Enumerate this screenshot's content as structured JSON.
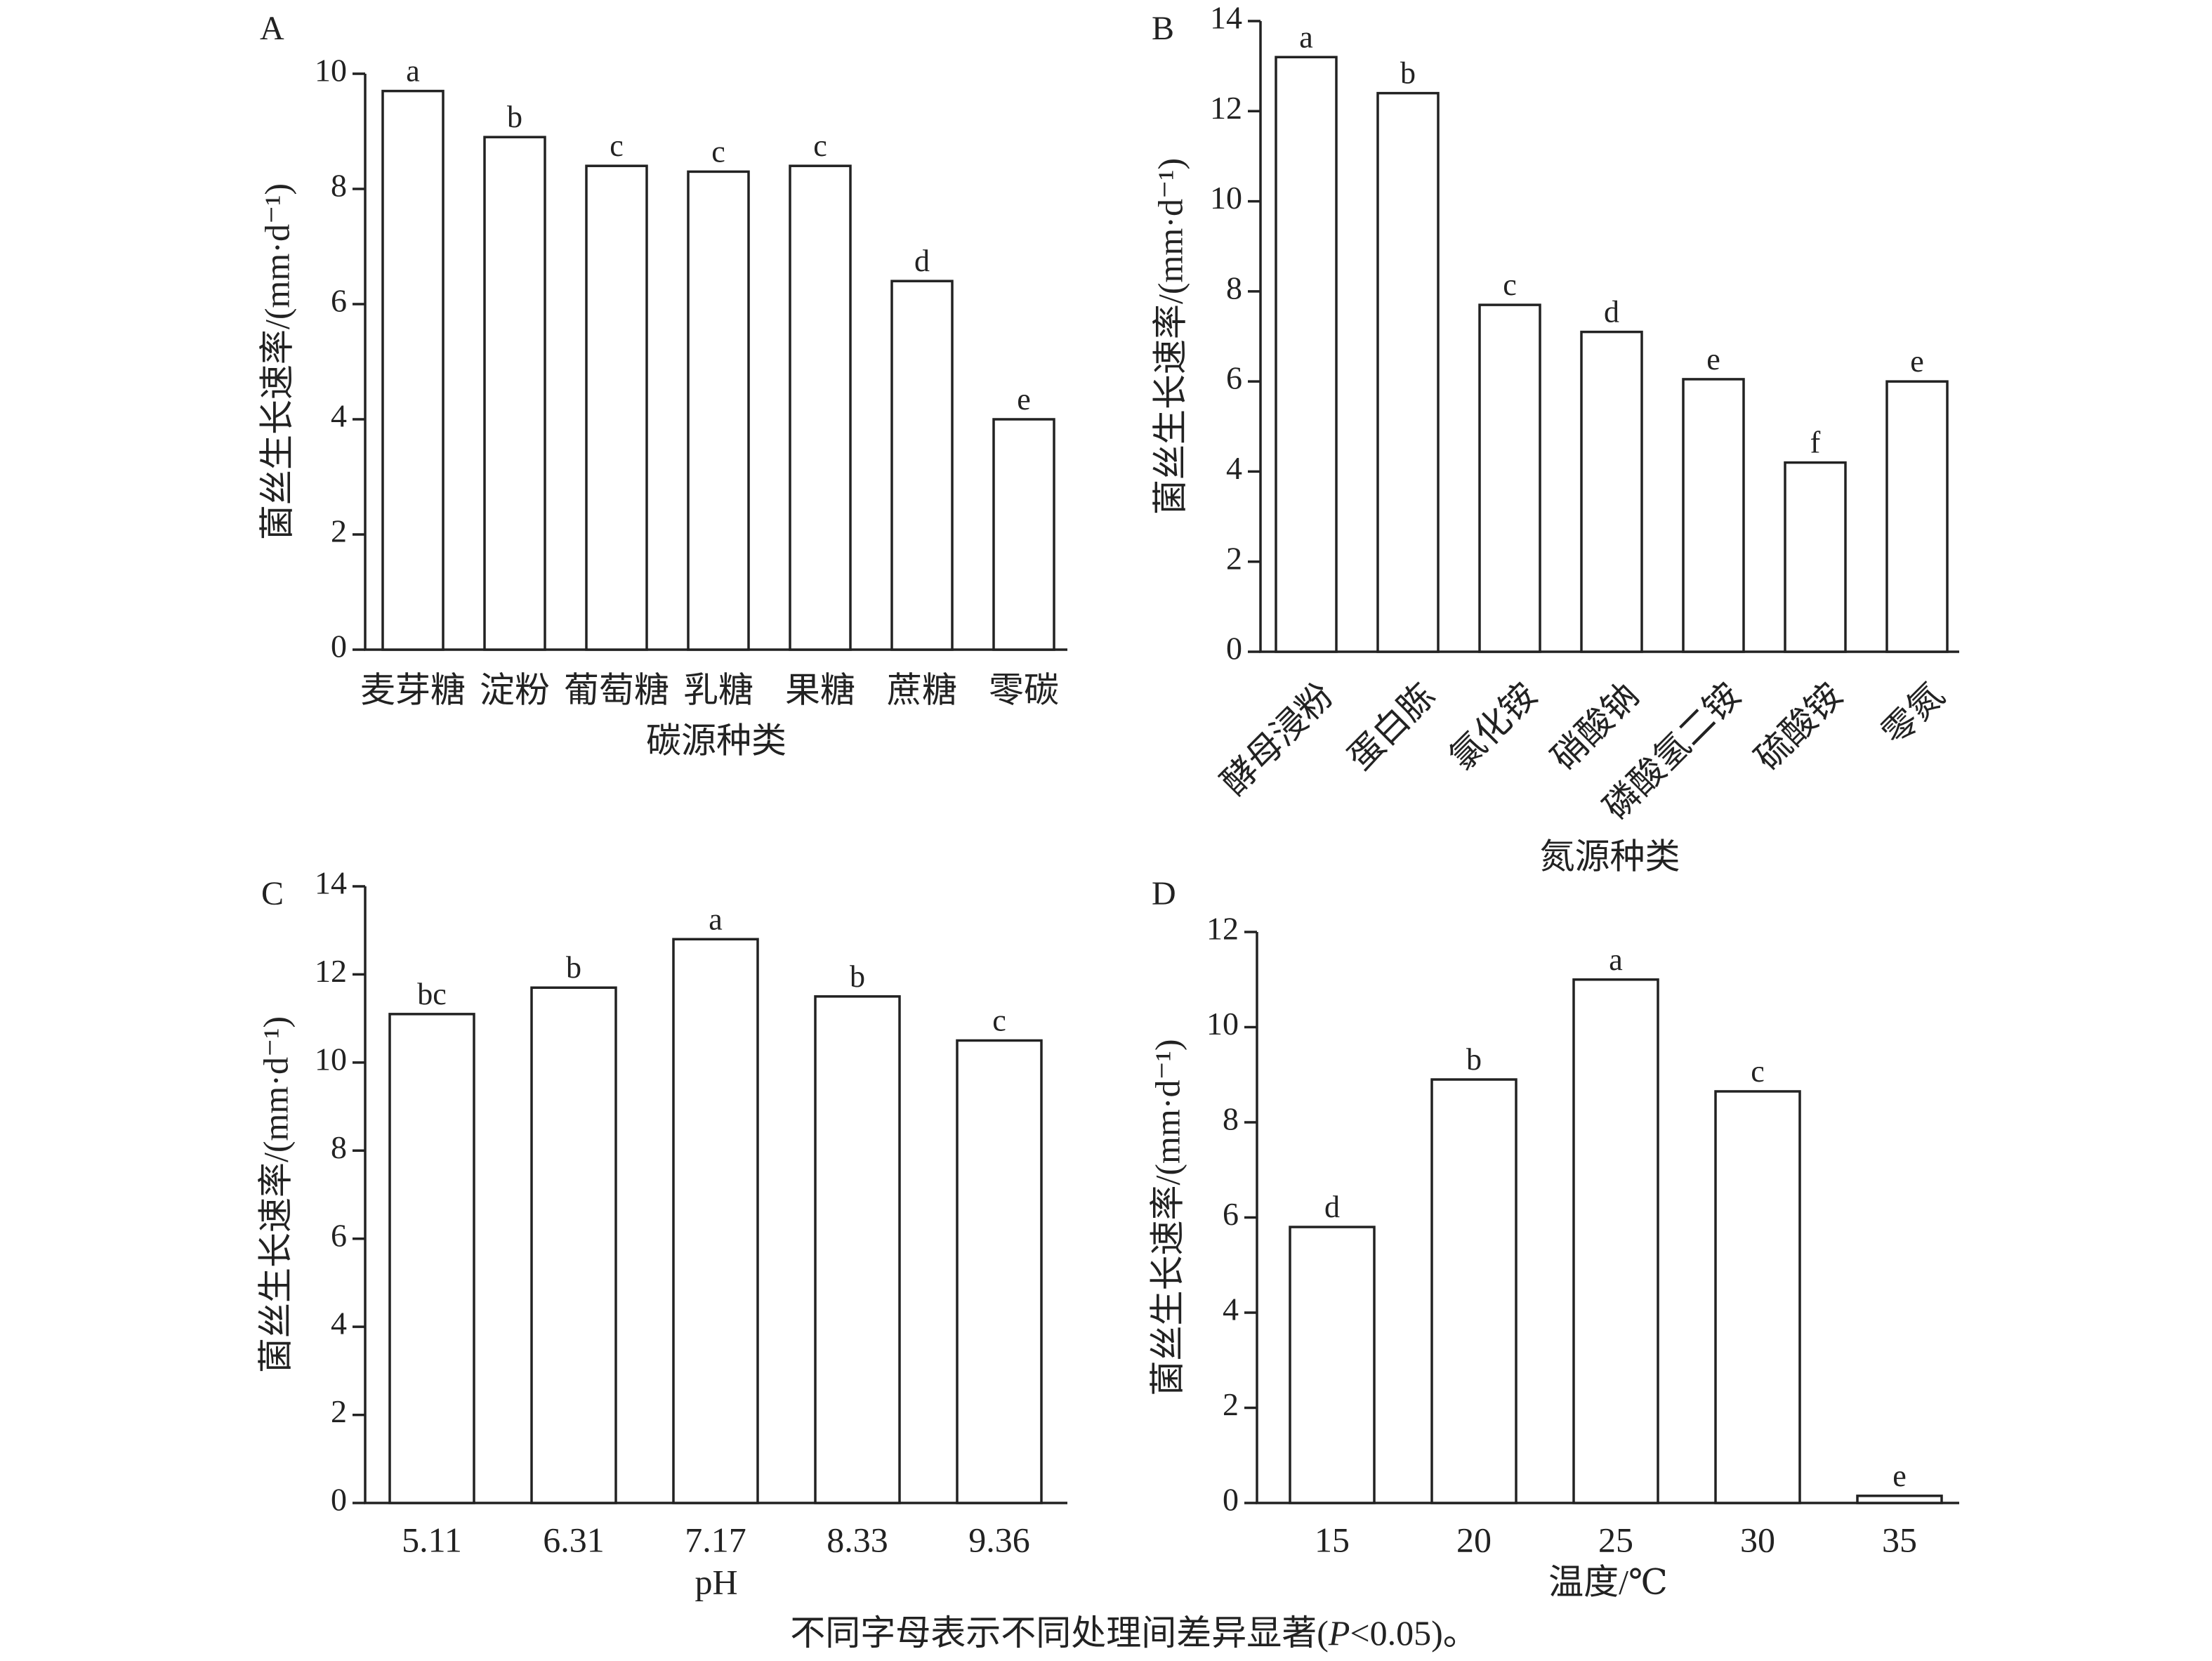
{
  "caption": {
    "prefix": "不同字母表示不同处理间差异显著(",
    "italic": "P",
    "suffix": "<0.05)。"
  },
  "chart_data": [
    {
      "panel": "A",
      "type": "bar",
      "categories": [
        "麦芽糖",
        "淀粉",
        "葡萄糖",
        "乳糖",
        "果糖",
        "蔗糖",
        "零碳"
      ],
      "values": [
        9.7,
        8.9,
        8.4,
        8.3,
        8.4,
        6.4,
        4.0
      ],
      "significance": [
        "a",
        "b",
        "c",
        "c",
        "c",
        "d",
        "e"
      ],
      "xlabel": "碳源种类",
      "ylabel": "菌丝生长速率/(mm·d⁻¹)",
      "ylim": [
        0,
        10
      ],
      "yticks": [
        0,
        2,
        4,
        6,
        8,
        10
      ],
      "grid": false,
      "rotated_x_labels": false
    },
    {
      "panel": "B",
      "type": "bar",
      "categories": [
        "酵母浸粉",
        "蛋白胨",
        "氯化铵",
        "硝酸钠",
        "磷酸氢二铵",
        "硫酸铵",
        "零氮"
      ],
      "values": [
        13.2,
        12.4,
        7.7,
        7.1,
        6.05,
        4.2,
        6.0
      ],
      "significance": [
        "a",
        "b",
        "c",
        "d",
        "e",
        "f",
        "e"
      ],
      "xlabel": "氮源种类",
      "ylabel": "菌丝生长速率/(mm·d⁻¹)",
      "ylim": [
        0,
        14
      ],
      "yticks": [
        0,
        2,
        4,
        6,
        8,
        10,
        12,
        14
      ],
      "grid": false,
      "rotated_x_labels": true
    },
    {
      "panel": "C",
      "type": "bar",
      "categories": [
        "5.11",
        "6.31",
        "7.17",
        "8.33",
        "9.36"
      ],
      "values": [
        11.1,
        11.7,
        12.8,
        11.5,
        10.5
      ],
      "significance": [
        "bc",
        "b",
        "a",
        "b",
        "c"
      ],
      "xlabel": "pH",
      "ylabel": "菌丝生长速率/(mm·d⁻¹)",
      "ylim": [
        0,
        14
      ],
      "yticks": [
        0,
        2,
        4,
        6,
        8,
        10,
        12,
        14
      ],
      "grid": false,
      "rotated_x_labels": false
    },
    {
      "panel": "D",
      "type": "bar",
      "categories": [
        "15",
        "20",
        "25",
        "30",
        "35"
      ],
      "values": [
        5.8,
        8.9,
        11.0,
        8.65,
        0.15
      ],
      "significance": [
        "d",
        "b",
        "a",
        "c",
        "e"
      ],
      "xlabel": "温度/℃",
      "ylabel": "菌丝生长速率/(mm·d⁻¹)",
      "ylim": [
        0,
        12
      ],
      "yticks": [
        0,
        2,
        4,
        6,
        8,
        10,
        12
      ],
      "grid": false,
      "rotated_x_labels": false
    }
  ]
}
